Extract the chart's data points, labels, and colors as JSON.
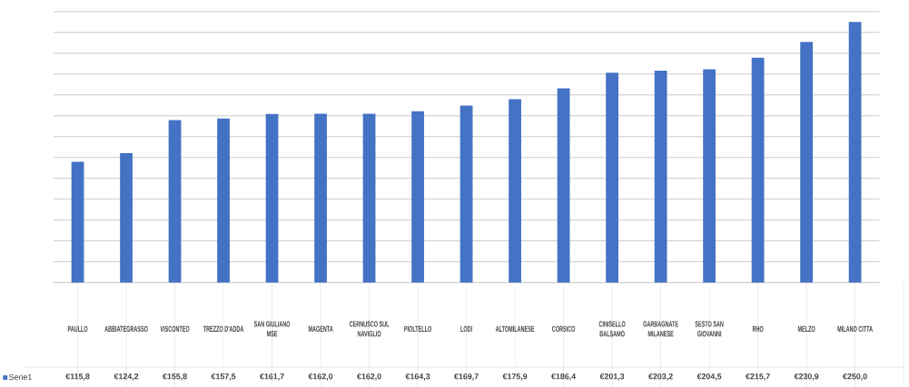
{
  "chart_data": {
    "type": "bar",
    "categories": [
      "PAULLO",
      "ABBIATEGRASSO",
      "VISCONTEO",
      "TREZZO D'ADDA",
      "SAN GIULIANO MSE",
      "MAGENTA",
      "CERNUSCO SUL NAVIGLIO",
      "PIOLTELLO",
      "LODI",
      "ALTOMILANESE",
      "CORSICO",
      "CINISELLO BALSAMO",
      "GARBAGNATE MILANESE",
      "SESTO SAN GIOVANNI",
      "RHO",
      "MELZO",
      "MILANO CITTA"
    ],
    "series": [
      {
        "name": "Serie1",
        "color": "#4472c4",
        "values": [
          115.8,
          124.2,
          155.8,
          157.5,
          161.7,
          162.0,
          162.0,
          164.3,
          169.7,
          175.9,
          186.4,
          201.3,
          203.2,
          204.5,
          215.7,
          230.9,
          250.0
        ],
        "value_labels": [
          "€115,8",
          "€124,2",
          "€155,8",
          "€157,5",
          "€161,7",
          "€162,0",
          "€162,0",
          "€164,3",
          "€169,7",
          "€175,9",
          "€186,4",
          "€201,3",
          "€203,2",
          "€204,5",
          "€215,7",
          "€230,9",
          "€250,0"
        ]
      }
    ],
    "tick_labels": "x",
    "grid": "y",
    "legend": "bottom left"
  }
}
